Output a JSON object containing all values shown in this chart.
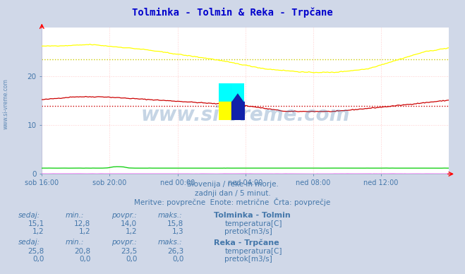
{
  "title": "Tolminka - Tolmin & Reka - Trpčane",
  "title_color": "#0000cc",
  "bg_color": "#d0d8e8",
  "plot_bg_color": "#ffffff",
  "grid_color": "#ffcccc",
  "axis_label_color": "#4477aa",
  "xlabel_ticks": [
    "sob 16:00",
    "sob 20:00",
    "ned 00:00",
    "ned 04:00",
    "ned 08:00",
    "ned 12:00"
  ],
  "yticks": [
    0,
    10,
    20
  ],
  "ylim": [
    0,
    30
  ],
  "xlim_max": 288,
  "n_points": 289,
  "tolminka_temp_avg": 14.0,
  "reka_temp_avg": 23.5,
  "line_color_tolminka_temp": "#cc0000",
  "line_color_reka_temp": "#ffff00",
  "line_color_tolminka_flow": "#00cc00",
  "line_color_reka_flow": "#ff00ff",
  "avg_color_tolminka_temp": "#cc0000",
  "avg_color_reka_temp": "#cccc00",
  "watermark_text": "www.si-vreme.com",
  "watermark_color": "#4477aa",
  "watermark_alpha": 0.3,
  "footer_line1": "Slovenija / reke in morje.",
  "footer_line2": "zadnji dan / 5 minut.",
  "footer_line3": "Meritve: povprečne  Enote: metrične  Črta: povprečje",
  "footer_color": "#4477aa",
  "table_header_color": "#4477aa",
  "table_value_color": "#4477aa",
  "station1_name": "Tolminka - Tolmin",
  "station1_sedaj": "15,1",
  "station1_min": "12,8",
  "station1_povpr": "14,0",
  "station1_maks": "15,8",
  "station1_temp_color": "#cc0000",
  "station1_flow_color": "#00cc00",
  "station1_temp_label": "temperatura[C]",
  "station1_flow_label": "pretok[m3/s]",
  "station1_flow_sedaj": "1,2",
  "station1_flow_min": "1,2",
  "station1_flow_povpr": "1,2",
  "station1_flow_maks": "1,3",
  "station2_name": "Reka - Trpčane",
  "station2_sedaj": "25,8",
  "station2_min": "20,8",
  "station2_povpr": "23,5",
  "station2_maks": "26,3",
  "station2_temp_color": "#ffff00",
  "station2_flow_color": "#ff00ff",
  "station2_temp_label": "temperatura[C]",
  "station2_flow_label": "pretok[m3/s]",
  "station2_flow_sedaj": "0,0",
  "station2_flow_min": "0,0",
  "station2_flow_povpr": "0,0",
  "station2_flow_maks": "0,0",
  "left_watermark": "www.si-vreme.com"
}
